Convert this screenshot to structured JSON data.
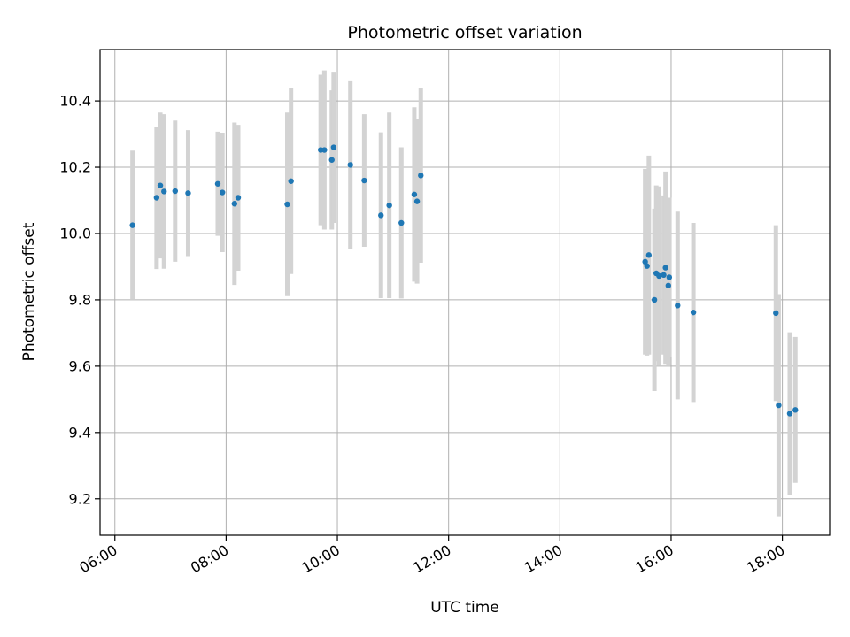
{
  "chart_data": {
    "type": "scatter",
    "title": "Photometric offset variation",
    "xlabel": "UTC time",
    "ylabel": "Photometric offset",
    "xlim": [
      "05:44",
      "18:51"
    ],
    "ylim": [
      9.09,
      10.555
    ],
    "x_ticks": [
      "06:00",
      "08:00",
      "10:00",
      "12:00",
      "14:00",
      "16:00",
      "18:00"
    ],
    "y_ticks": [
      "9.2",
      "9.4",
      "9.6",
      "9.8",
      "10.0",
      "10.2",
      "10.4"
    ],
    "grid": true,
    "colors": {
      "points": "#1f77b4",
      "errorbars": "#d3d3d3",
      "grid": "#b0b0b0"
    },
    "points": [
      {
        "x": "06:19",
        "y": 10.025,
        "err": 0.225
      },
      {
        "x": "06:45",
        "y": 10.108,
        "err": 0.215
      },
      {
        "x": "06:49",
        "y": 10.145,
        "err": 0.22
      },
      {
        "x": "06:53",
        "y": 10.127,
        "err": 0.233
      },
      {
        "x": "07:05",
        "y": 10.128,
        "err": 0.213
      },
      {
        "x": "07:19",
        "y": 10.122,
        "err": 0.19
      },
      {
        "x": "07:51",
        "y": 10.15,
        "err": 0.157
      },
      {
        "x": "07:56",
        "y": 10.124,
        "err": 0.18
      },
      {
        "x": "08:09",
        "y": 10.09,
        "err": 0.245
      },
      {
        "x": "08:13",
        "y": 10.108,
        "err": 0.22
      },
      {
        "x": "09:06",
        "y": 10.088,
        "err": 0.277
      },
      {
        "x": "09:10",
        "y": 10.158,
        "err": 0.28
      },
      {
        "x": "09:42",
        "y": 10.252,
        "err": 0.227
      },
      {
        "x": "09:46",
        "y": 10.252,
        "err": 0.24
      },
      {
        "x": "09:54",
        "y": 10.222,
        "err": 0.21
      },
      {
        "x": "09:56",
        "y": 10.26,
        "err": 0.228
      },
      {
        "x": "10:14",
        "y": 10.207,
        "err": 0.255
      },
      {
        "x": "10:29",
        "y": 10.16,
        "err": 0.2
      },
      {
        "x": "10:47",
        "y": 10.055,
        "err": 0.25
      },
      {
        "x": "10:56",
        "y": 10.085,
        "err": 0.28
      },
      {
        "x": "11:09",
        "y": 10.032,
        "err": 0.228
      },
      {
        "x": "11:23",
        "y": 10.118,
        "err": 0.263
      },
      {
        "x": "11:26",
        "y": 10.097,
        "err": 0.248
      },
      {
        "x": "11:30",
        "y": 10.175,
        "err": 0.263
      },
      {
        "x": "15:32",
        "y": 9.915,
        "err": 0.28
      },
      {
        "x": "15:34",
        "y": 9.902,
        "err": 0.27
      },
      {
        "x": "15:36",
        "y": 9.935,
        "err": 0.3
      },
      {
        "x": "15:42",
        "y": 9.8,
        "err": 0.275
      },
      {
        "x": "15:44",
        "y": 9.88,
        "err": 0.265
      },
      {
        "x": "15:47",
        "y": 9.872,
        "err": 0.27
      },
      {
        "x": "15:52",
        "y": 9.875,
        "err": 0.24
      },
      {
        "x": "15:54",
        "y": 9.897,
        "err": 0.29
      },
      {
        "x": "15:57",
        "y": 9.843,
        "err": 0.24
      },
      {
        "x": "15:58",
        "y": 9.868,
        "err": 0.24
      },
      {
        "x": "16:07",
        "y": 9.783,
        "err": 0.283
      },
      {
        "x": "16:24",
        "y": 9.762,
        "err": 0.27
      },
      {
        "x": "17:53",
        "y": 9.76,
        "err": 0.265
      },
      {
        "x": "17:56",
        "y": 9.482,
        "err": 0.335
      },
      {
        "x": "18:08",
        "y": 9.457,
        "err": 0.245
      },
      {
        "x": "18:14",
        "y": 9.468,
        "err": 0.22
      }
    ]
  }
}
